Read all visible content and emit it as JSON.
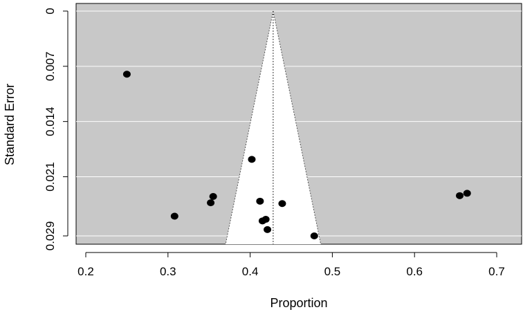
{
  "chart_data": {
    "type": "scatter",
    "subtype": "funnel-plot",
    "title": "",
    "xlabel": "Proportion",
    "ylabel": "Standard Error",
    "xlim": [
      0.2,
      0.72
    ],
    "ylim": [
      0,
      0.0285
    ],
    "y_reversed": true,
    "x_ticks": [
      0.2,
      0.3,
      0.4,
      0.5,
      0.6,
      0.7
    ],
    "x_tick_labels": [
      "0.2",
      "0.3",
      "0.4",
      "0.5",
      "0.6",
      "0.7"
    ],
    "y_ticks": [
      0,
      0.007,
      0.014,
      0.021,
      0.0285
    ],
    "y_tick_labels": [
      "0",
      "0.007",
      "0.014",
      "0.021",
      "0.029"
    ],
    "grid": true,
    "panel_background": "#c8c8c8",
    "funnel": {
      "center": 0.428,
      "fill": "#ffffff",
      "line_color": "#555555"
    },
    "points": [
      {
        "x": 0.25,
        "y": 0.008
      },
      {
        "x": 0.308,
        "y": 0.026
      },
      {
        "x": 0.352,
        "y": 0.0243
      },
      {
        "x": 0.355,
        "y": 0.0235
      },
      {
        "x": 0.402,
        "y": 0.0188
      },
      {
        "x": 0.412,
        "y": 0.0241
      },
      {
        "x": 0.415,
        "y": 0.0266
      },
      {
        "x": 0.419,
        "y": 0.0264
      },
      {
        "x": 0.421,
        "y": 0.0277
      },
      {
        "x": 0.439,
        "y": 0.0244
      },
      {
        "x": 0.478,
        "y": 0.0285
      },
      {
        "x": 0.655,
        "y": 0.0234
      },
      {
        "x": 0.664,
        "y": 0.0231
      }
    ],
    "point_color": "#000000"
  }
}
